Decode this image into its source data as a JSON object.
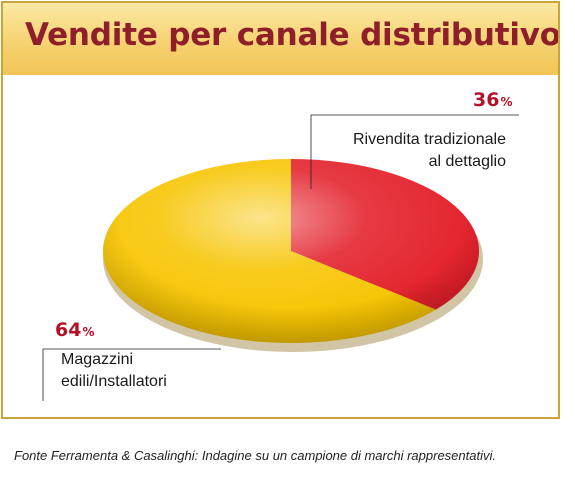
{
  "chart_data": {
    "type": "pie",
    "title": "Vendite per canale distributivo",
    "slices": [
      {
        "label_lines": [
          "Rivendita tradizionale",
          "al dettaglio"
        ],
        "value": 36,
        "value_text": "36",
        "unit": "%",
        "color": "#e3202a"
      },
      {
        "label_lines": [
          "Magazzini",
          "edili/Installatori"
        ],
        "value": 64,
        "value_text": "64",
        "unit": "%",
        "color": "#f7c400"
      }
    ],
    "legend": "none"
  },
  "source": "Fonte Ferramenta & Casalinghi: Indagine su un campione di marchi rappresentativi."
}
